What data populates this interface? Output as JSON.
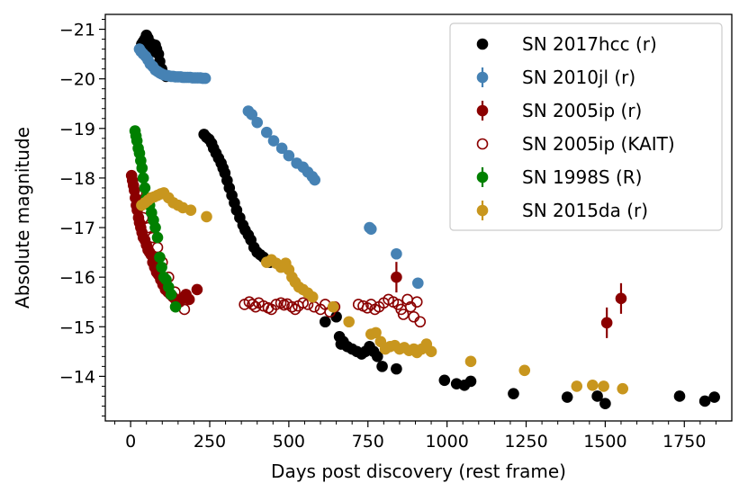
{
  "chart_data": {
    "type": "scatter",
    "xlabel": "Days post discovery (rest frame)",
    "ylabel": "Absolute magnitude",
    "xlim": [
      -80,
      1900
    ],
    "ylim": [
      -13.1,
      -21.3
    ],
    "y_inverted": true,
    "xticks": [
      0,
      250,
      500,
      750,
      1000,
      1250,
      1500,
      1750
    ],
    "yticks": [
      -14,
      -15,
      -16,
      -17,
      -18,
      -19,
      -20,
      -21
    ],
    "xtick_labels": [
      "0",
      "250",
      "500",
      "750",
      "1000",
      "1250",
      "1500",
      "1750"
    ],
    "ytick_labels": [
      "−14",
      "−15",
      "−16",
      "−17",
      "−18",
      "−19",
      "−20",
      "−21"
    ],
    "grid": false,
    "legend_position": "top-right",
    "series": [
      {
        "name": "SN 2017hcc (r)",
        "color": "#000000",
        "marker": "filled-circle",
        "errorbars": false,
        "points": [
          [
            30,
            -20.6
          ],
          [
            35,
            -20.7
          ],
          [
            40,
            -20.75
          ],
          [
            45,
            -20.8
          ],
          [
            50,
            -20.88
          ],
          [
            55,
            -20.82
          ],
          [
            58,
            -20.65
          ],
          [
            62,
            -20.72
          ],
          [
            68,
            -20.7
          ],
          [
            72,
            -20.55
          ],
          [
            78,
            -20.68
          ],
          [
            82,
            -20.6
          ],
          [
            88,
            -20.5
          ],
          [
            92,
            -20.35
          ],
          [
            98,
            -20.2
          ],
          [
            105,
            -20.1
          ],
          [
            112,
            -20.05
          ],
          [
            232,
            -18.88
          ],
          [
            240,
            -18.82
          ],
          [
            248,
            -18.78
          ],
          [
            256,
            -18.7
          ],
          [
            262,
            -18.6
          ],
          [
            270,
            -18.5
          ],
          [
            278,
            -18.4
          ],
          [
            286,
            -18.3
          ],
          [
            292,
            -18.2
          ],
          [
            298,
            -18.1
          ],
          [
            305,
            -17.95
          ],
          [
            312,
            -17.8
          ],
          [
            320,
            -17.65
          ],
          [
            328,
            -17.5
          ],
          [
            335,
            -17.35
          ],
          [
            345,
            -17.2
          ],
          [
            355,
            -17.05
          ],
          [
            362,
            -16.95
          ],
          [
            372,
            -16.85
          ],
          [
            380,
            -16.75
          ],
          [
            390,
            -16.6
          ],
          [
            400,
            -16.5
          ],
          [
            410,
            -16.45
          ],
          [
            420,
            -16.4
          ],
          [
            440,
            -16.3
          ],
          [
            615,
            -15.1
          ],
          [
            650,
            -15.2
          ],
          [
            660,
            -14.8
          ],
          [
            665,
            -14.65
          ],
          [
            672,
            -14.7
          ],
          [
            685,
            -14.6
          ],
          [
            700,
            -14.55
          ],
          [
            715,
            -14.5
          ],
          [
            730,
            -14.45
          ],
          [
            742,
            -14.5
          ],
          [
            755,
            -14.6
          ],
          [
            768,
            -14.5
          ],
          [
            780,
            -14.4
          ],
          [
            795,
            -14.2
          ],
          [
            840,
            -14.15
          ],
          [
            992,
            -13.92
          ],
          [
            1030,
            -13.85
          ],
          [
            1055,
            -13.82
          ],
          [
            1075,
            -13.9
          ],
          [
            1210,
            -13.65
          ],
          [
            1380,
            -13.58
          ],
          [
            1475,
            -13.6
          ],
          [
            1500,
            -13.45
          ],
          [
            1735,
            -13.6
          ],
          [
            1815,
            -13.5
          ],
          [
            1845,
            -13.58
          ]
        ]
      },
      {
        "name": "SN 2010jl (r)",
        "color": "#4682b4",
        "marker": "filled-circle",
        "errorbars": true,
        "points": [
          [
            28,
            -20.6
          ],
          [
            33,
            -20.55
          ],
          [
            40,
            -20.5
          ],
          [
            48,
            -20.45
          ],
          [
            55,
            -20.38
          ],
          [
            62,
            -20.3
          ],
          [
            70,
            -20.25
          ],
          [
            78,
            -20.18
          ],
          [
            85,
            -20.15
          ],
          [
            92,
            -20.12
          ],
          [
            98,
            -20.1
          ],
          [
            105,
            -20.08
          ],
          [
            112,
            -20.07
          ],
          [
            120,
            -20.06
          ],
          [
            128,
            -20.05
          ],
          [
            135,
            -20.05
          ],
          [
            142,
            -20.04
          ],
          [
            150,
            -20.04
          ],
          [
            158,
            -20.04
          ],
          [
            165,
            -20.03
          ],
          [
            172,
            -20.03
          ],
          [
            180,
            -20.03
          ],
          [
            188,
            -20.03
          ],
          [
            196,
            -20.02
          ],
          [
            204,
            -20.02
          ],
          [
            212,
            -20.02
          ],
          [
            220,
            -20.02
          ],
          [
            228,
            -20.01
          ],
          [
            236,
            -20.01
          ],
          [
            372,
            -19.35
          ],
          [
            383,
            -19.28
          ],
          [
            400,
            -19.12
          ],
          [
            430,
            -18.92
          ],
          [
            452,
            -18.75
          ],
          [
            478,
            -18.6
          ],
          [
            500,
            -18.45
          ],
          [
            525,
            -18.3
          ],
          [
            545,
            -18.22
          ],
          [
            560,
            -18.12
          ],
          [
            574,
            -18.03
          ],
          [
            582,
            -17.96
          ],
          [
            755,
            -17.0
          ],
          [
            760,
            -16.97
          ],
          [
            840,
            -16.47
          ],
          [
            908,
            -15.88
          ]
        ]
      },
      {
        "name": "SN 2005ip (r)",
        "color": "#8b0000",
        "marker": "filled-circle",
        "errorbars": true,
        "points": [
          [
            3,
            -18.05
          ],
          [
            6,
            -17.95
          ],
          [
            9,
            -17.85
          ],
          [
            12,
            -17.75
          ],
          [
            15,
            -17.6
          ],
          [
            18,
            -17.45
          ],
          [
            21,
            -17.35
          ],
          [
            25,
            -17.2
          ],
          [
            28,
            -17.1
          ],
          [
            32,
            -17.0
          ],
          [
            36,
            -16.9
          ],
          [
            40,
            -16.8
          ],
          [
            45,
            -16.75
          ],
          [
            50,
            -16.65
          ],
          [
            55,
            -16.55
          ],
          [
            60,
            -16.5
          ],
          [
            65,
            -16.45
          ],
          [
            70,
            -16.3
          ],
          [
            76,
            -16.2
          ],
          [
            82,
            -16.1
          ],
          [
            88,
            -16.05
          ],
          [
            95,
            -15.95
          ],
          [
            102,
            -15.85
          ],
          [
            110,
            -15.75
          ],
          [
            118,
            -15.7
          ],
          [
            126,
            -15.65
          ],
          [
            134,
            -15.6
          ],
          [
            142,
            -15.55
          ],
          [
            150,
            -15.5
          ],
          [
            165,
            -15.58
          ],
          [
            175,
            -15.65
          ],
          [
            185,
            -15.55
          ],
          [
            210,
            -15.75
          ],
          [
            840,
            -16.0
          ],
          [
            1505,
            -15.08
          ],
          [
            1550,
            -15.57
          ]
        ]
      },
      {
        "name": "SN 2005ip (KAIT)",
        "color": "#8b0000",
        "marker": "open-circle",
        "errorbars": false,
        "points": [
          [
            20,
            -17.7
          ],
          [
            40,
            -17.2
          ],
          [
            55,
            -17.0
          ],
          [
            70,
            -16.8
          ],
          [
            85,
            -16.6
          ],
          [
            100,
            -16.3
          ],
          [
            120,
            -16.0
          ],
          [
            140,
            -15.7
          ],
          [
            155,
            -15.5
          ],
          [
            170,
            -15.35
          ],
          [
            360,
            -15.45
          ],
          [
            375,
            -15.5
          ],
          [
            385,
            -15.45
          ],
          [
            395,
            -15.4
          ],
          [
            405,
            -15.48
          ],
          [
            420,
            -15.42
          ],
          [
            435,
            -15.38
          ],
          [
            445,
            -15.35
          ],
          [
            460,
            -15.45
          ],
          [
            475,
            -15.48
          ],
          [
            485,
            -15.44
          ],
          [
            495,
            -15.46
          ],
          [
            510,
            -15.4
          ],
          [
            520,
            -15.35
          ],
          [
            530,
            -15.42
          ],
          [
            545,
            -15.48
          ],
          [
            560,
            -15.45
          ],
          [
            580,
            -15.4
          ],
          [
            600,
            -15.35
          ],
          [
            615,
            -15.45
          ],
          [
            630,
            -15.3
          ],
          [
            645,
            -15.4
          ],
          [
            720,
            -15.45
          ],
          [
            735,
            -15.42
          ],
          [
            748,
            -15.38
          ],
          [
            760,
            -15.45
          ],
          [
            772,
            -15.35
          ],
          [
            785,
            -15.4
          ],
          [
            800,
            -15.48
          ],
          [
            815,
            -15.55
          ],
          [
            830,
            -15.5
          ],
          [
            845,
            -15.45
          ],
          [
            855,
            -15.35
          ],
          [
            862,
            -15.25
          ],
          [
            875,
            -15.55
          ],
          [
            885,
            -15.4
          ],
          [
            895,
            -15.2
          ],
          [
            905,
            -15.5
          ],
          [
            915,
            -15.1
          ]
        ]
      },
      {
        "name": "SN 1998S (R)",
        "color": "#008000",
        "marker": "filled-circle",
        "errorbars": true,
        "points": [
          [
            14,
            -18.95
          ],
          [
            17,
            -18.85
          ],
          [
            20,
            -18.75
          ],
          [
            24,
            -18.6
          ],
          [
            28,
            -18.5
          ],
          [
            32,
            -18.35
          ],
          [
            36,
            -18.2
          ],
          [
            40,
            -18.0
          ],
          [
            45,
            -17.8
          ],
          [
            50,
            -17.6
          ],
          [
            55,
            -17.5
          ],
          [
            60,
            -17.45
          ],
          [
            66,
            -17.3
          ],
          [
            72,
            -17.15
          ],
          [
            78,
            -17.0
          ],
          [
            85,
            -16.8
          ],
          [
            92,
            -16.4
          ],
          [
            98,
            -16.2
          ],
          [
            105,
            -16.0
          ],
          [
            112,
            -15.95
          ],
          [
            120,
            -15.8
          ],
          [
            128,
            -15.65
          ],
          [
            142,
            -15.4
          ]
        ]
      },
      {
        "name": "SN 2015da (r)",
        "color": "#c8961e",
        "marker": "filled-circle",
        "errorbars": true,
        "points": [
          [
            35,
            -17.45
          ],
          [
            45,
            -17.5
          ],
          [
            55,
            -17.55
          ],
          [
            65,
            -17.6
          ],
          [
            75,
            -17.62
          ],
          [
            85,
            -17.65
          ],
          [
            95,
            -17.68
          ],
          [
            105,
            -17.7
          ],
          [
            120,
            -17.6
          ],
          [
            135,
            -17.5
          ],
          [
            150,
            -17.45
          ],
          [
            165,
            -17.4
          ],
          [
            190,
            -17.35
          ],
          [
            240,
            -17.22
          ],
          [
            430,
            -16.3
          ],
          [
            445,
            -16.35
          ],
          [
            460,
            -16.28
          ],
          [
            475,
            -16.2
          ],
          [
            490,
            -16.28
          ],
          [
            500,
            -16.15
          ],
          [
            510,
            -16.0
          ],
          [
            520,
            -15.9
          ],
          [
            532,
            -15.8
          ],
          [
            545,
            -15.75
          ],
          [
            560,
            -15.68
          ],
          [
            575,
            -15.6
          ],
          [
            640,
            -15.4
          ],
          [
            690,
            -15.1
          ],
          [
            760,
            -14.85
          ],
          [
            775,
            -14.88
          ],
          [
            790,
            -14.7
          ],
          [
            805,
            -14.55
          ],
          [
            820,
            -14.6
          ],
          [
            835,
            -14.62
          ],
          [
            850,
            -14.55
          ],
          [
            865,
            -14.58
          ],
          [
            880,
            -14.52
          ],
          [
            895,
            -14.55
          ],
          [
            905,
            -14.48
          ],
          [
            920,
            -14.55
          ],
          [
            935,
            -14.65
          ],
          [
            950,
            -14.5
          ],
          [
            1075,
            -14.3
          ],
          [
            1245,
            -14.12
          ],
          [
            1410,
            -13.8
          ],
          [
            1460,
            -13.82
          ],
          [
            1495,
            -13.8
          ],
          [
            1555,
            -13.75
          ]
        ]
      }
    ]
  }
}
